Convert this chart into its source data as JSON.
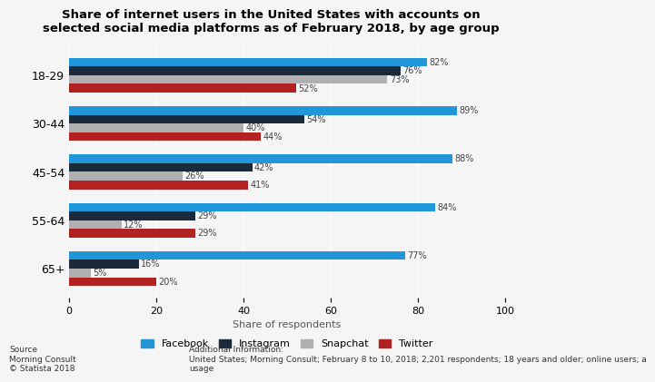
{
  "title": "Share of internet users in the United States with accounts on\nselected social media platforms as of February 2018, by age group",
  "age_groups": [
    "18-29",
    "30-44",
    "45-54",
    "55-64",
    "65+"
  ],
  "platforms": [
    "Facebook",
    "Instagram",
    "Snapchat",
    "Twitter"
  ],
  "data": {
    "Facebook": [
      82,
      89,
      88,
      84,
      77
    ],
    "Instagram": [
      76,
      54,
      42,
      29,
      16
    ],
    "Snapchat": [
      73,
      40,
      26,
      12,
      5
    ],
    "Twitter": [
      52,
      44,
      41,
      29,
      20
    ]
  },
  "colors": {
    "Facebook": "#2196d8",
    "Instagram": "#1a2a3a",
    "Snapchat": "#b0b0b0",
    "Twitter": "#b22222"
  },
  "xlabel": "Share of respondents",
  "xlim": [
    0,
    100
  ],
  "bar_height": 0.18,
  "bg_color": "#f5f5f5",
  "source_text": "Source\nMorning Consult\n© Statista 2018",
  "additional_text": "Additional Information:\nUnited States; Morning Consult; February 8 to 10, 2018; 2,201 respondents; 18 years and older; online users; a\nusage"
}
